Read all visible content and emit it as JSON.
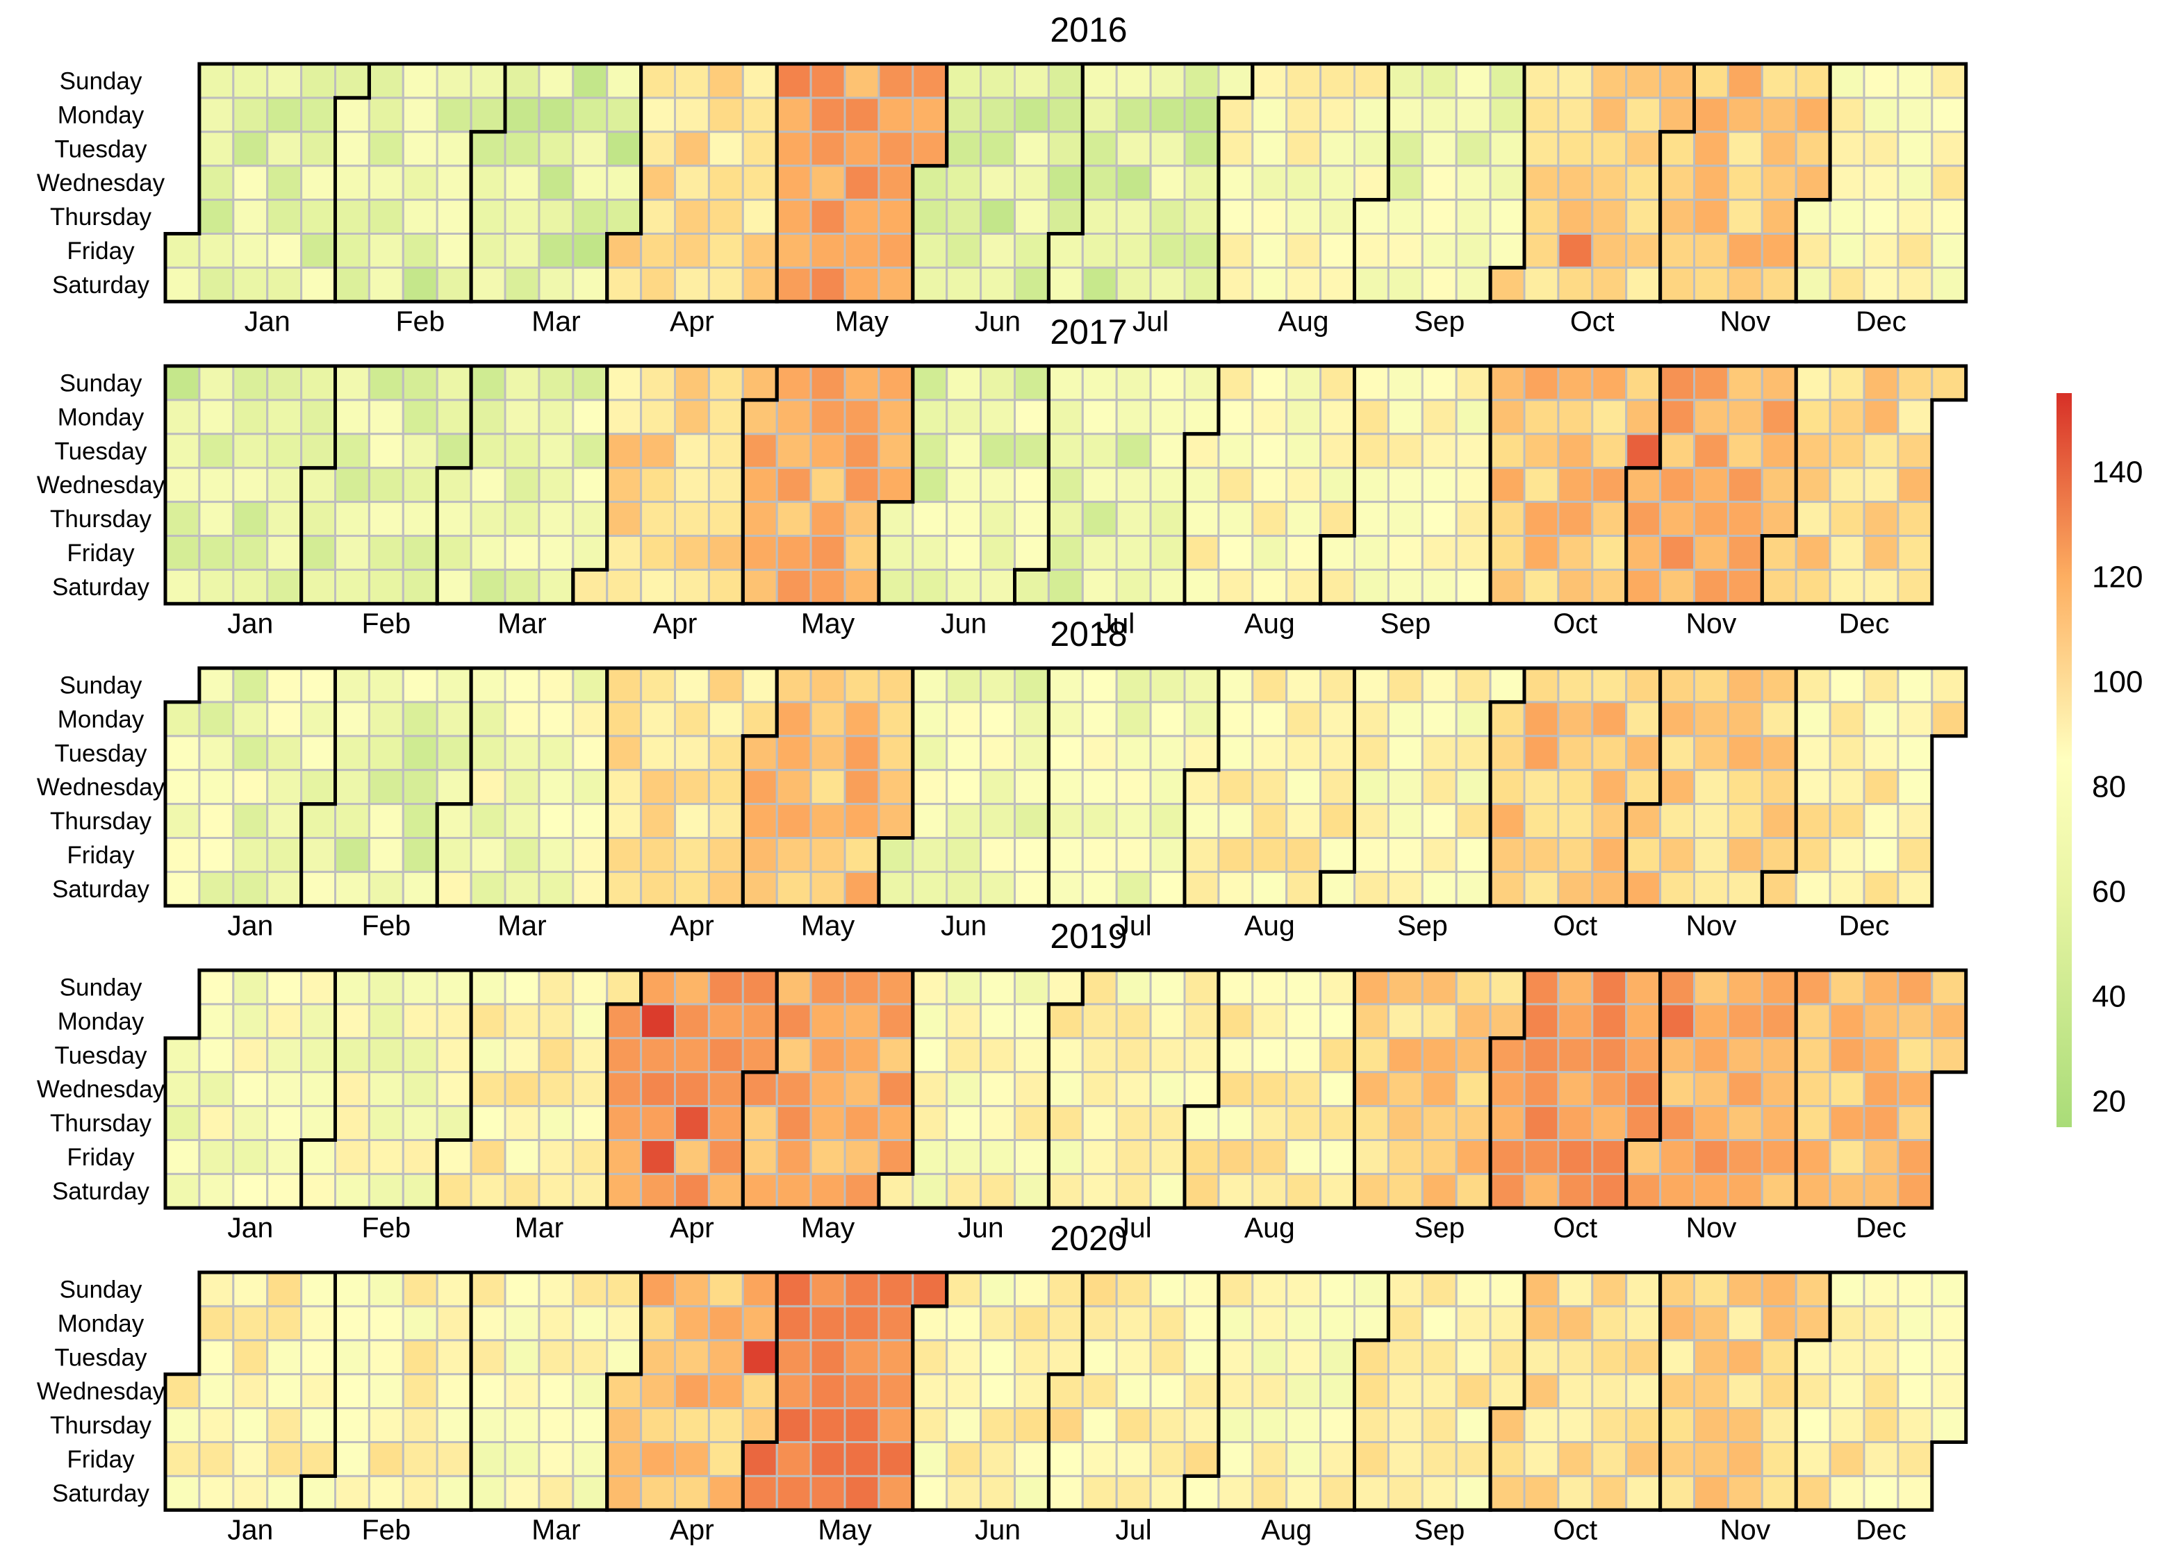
{
  "chart_data": {
    "type": "heatmap",
    "subtype": "calendar",
    "years": [
      2016,
      2017,
      2018,
      2019,
      2020
    ],
    "weekday_labels": [
      "Sunday",
      "Monday",
      "Tuesday",
      "Wednesday",
      "Thursday",
      "Friday",
      "Saturday"
    ],
    "month_labels": [
      "Jan",
      "Feb",
      "Mar",
      "Apr",
      "May",
      "Jun",
      "Jul",
      "Aug",
      "Sep",
      "Oct",
      "Nov",
      "Dec"
    ],
    "colorbar": {
      "ticks": [
        20,
        40,
        60,
        80,
        100,
        120,
        140
      ],
      "range": [
        15,
        155
      ],
      "colors": {
        "low": "#a9dc78",
        "mid": "#ffffbf",
        "high_mid": "#fdae61",
        "high": "#d73027"
      }
    },
    "monthly_mean_values": {
      "2016": [
        42,
        40,
        38,
        78,
        105,
        38,
        40,
        60,
        50,
        82,
        88,
        62
      ],
      "2017": [
        40,
        42,
        44,
        80,
        100,
        45,
        44,
        62,
        62,
        90,
        100,
        82
      ],
      "2018": [
        48,
        44,
        52,
        75,
        92,
        50,
        52,
        70,
        64,
        90,
        85,
        70
      ],
      "2019": [
        52,
        55,
        68,
        105,
        100,
        60,
        66,
        72,
        85,
        108,
        100,
        92
      ],
      "2020": [
        68,
        66,
        62,
        92,
        118,
        66,
        72,
        62,
        68,
        80,
        82,
        70
      ]
    },
    "notable_high_days": [
      {
        "date": "2016-05-01",
        "value": 120
      },
      {
        "date": "2016-10-14",
        "value": 125
      },
      {
        "date": "2017-10-31",
        "value": 135
      },
      {
        "date": "2019-04-08",
        "value": 150
      },
      {
        "date": "2019-04-12",
        "value": 142
      },
      {
        "date": "2019-04-18",
        "value": 140
      },
      {
        "date": "2019-11-04",
        "value": 128
      },
      {
        "date": "2020-04-28",
        "value": 148
      },
      {
        "date": "2020-05-01",
        "value": 132
      }
    ]
  }
}
